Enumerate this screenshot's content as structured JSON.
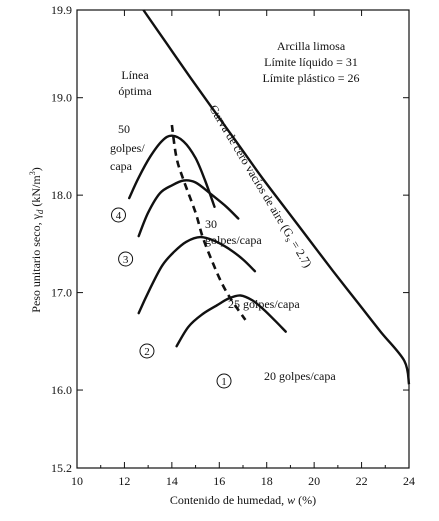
{
  "chart_data": {
    "type": "line",
    "xlabel_text": "Contenido de humedad, ",
    "xlabel_var": "w",
    "xlabel_unit": " (%)",
    "ylabel_text": "Peso unitario seco, γ",
    "ylabel_sub": "d",
    "ylabel_unit": " (kN/m",
    "ylabel_sup": "3",
    "ylabel_close": ")",
    "xlim": [
      10,
      24
    ],
    "ylim": [
      15.2,
      19.9
    ],
    "xticks": [
      10,
      12,
      14,
      16,
      18,
      20,
      22,
      24
    ],
    "yticks": [
      15.2,
      16.0,
      17.0,
      18.0,
      19.0,
      19.9
    ],
    "ytick_labels": [
      "15.2",
      "16.0",
      "17.0",
      "18.0",
      "19.0",
      "19.9"
    ],
    "info_box": [
      "Arcilla limosa",
      "Límite líquido = 31",
      "Límite plástico = 26"
    ],
    "series": [
      {
        "name": "20 golpes/capa",
        "marker": "1",
        "points": [
          [
            14.2,
            16.45
          ],
          [
            14.7,
            16.65
          ],
          [
            15.3,
            16.78
          ],
          [
            15.9,
            16.87
          ],
          [
            16.4,
            16.94
          ],
          [
            16.9,
            16.97
          ],
          [
            17.4,
            16.92
          ],
          [
            17.9,
            16.82
          ],
          [
            18.4,
            16.7
          ],
          [
            18.8,
            16.6
          ]
        ]
      },
      {
        "name": "25 golpes/capa",
        "marker": "2",
        "points": [
          [
            12.6,
            16.79
          ],
          [
            13.1,
            17.05
          ],
          [
            13.6,
            17.28
          ],
          [
            14.1,
            17.42
          ],
          [
            14.6,
            17.52
          ],
          [
            15.2,
            17.57
          ],
          [
            15.8,
            17.53
          ],
          [
            16.4,
            17.45
          ],
          [
            17.0,
            17.34
          ],
          [
            17.5,
            17.22
          ]
        ]
      },
      {
        "name_lines": [
          "30",
          "golpes/capa"
        ],
        "marker": "3",
        "points": [
          [
            12.6,
            17.58
          ],
          [
            13.0,
            17.82
          ],
          [
            13.5,
            18.02
          ],
          [
            14.0,
            18.1
          ],
          [
            14.5,
            18.15
          ],
          [
            15.0,
            18.13
          ],
          [
            15.6,
            18.02
          ],
          [
            16.3,
            17.88
          ],
          [
            16.8,
            17.76
          ]
        ]
      },
      {
        "name_lines": [
          "50",
          "golpes/",
          "capa"
        ],
        "marker": "4",
        "points": [
          [
            12.2,
            17.97
          ],
          [
            12.6,
            18.18
          ],
          [
            13.1,
            18.4
          ],
          [
            13.6,
            18.56
          ],
          [
            14.0,
            18.61
          ],
          [
            14.5,
            18.55
          ],
          [
            15.0,
            18.38
          ],
          [
            15.4,
            18.15
          ],
          [
            15.8,
            17.88
          ]
        ]
      }
    ],
    "optimum_line": {
      "label_lines": [
        "Línea",
        "óptima"
      ],
      "points": [
        [
          14.0,
          18.72
        ],
        [
          14.2,
          18.38
        ],
        [
          14.5,
          18.15
        ],
        [
          15.0,
          17.82
        ],
        [
          15.3,
          17.57
        ],
        [
          15.7,
          17.32
        ],
        [
          16.1,
          17.1
        ],
        [
          16.5,
          16.93
        ],
        [
          17.1,
          16.72
        ]
      ]
    },
    "zero_air_voids": {
      "label": "Curva de cero vacíos de aire",
      "label_gs": " (G",
      "label_gs_sub": "s",
      "label_gs_val": " = 2.7)",
      "points": [
        [
          12.8,
          19.9
        ],
        [
          13.8,
          19.55
        ],
        [
          14.8,
          19.2
        ],
        [
          15.8,
          18.86
        ],
        [
          16.8,
          18.52
        ],
        [
          17.8,
          18.18
        ],
        [
          18.8,
          17.86
        ],
        [
          19.8,
          17.54
        ],
        [
          20.8,
          17.22
        ],
        [
          21.8,
          16.91
        ],
        [
          22.8,
          16.6
        ],
        [
          23.8,
          16.3
        ],
        [
          24.0,
          16.06
        ]
      ]
    }
  }
}
